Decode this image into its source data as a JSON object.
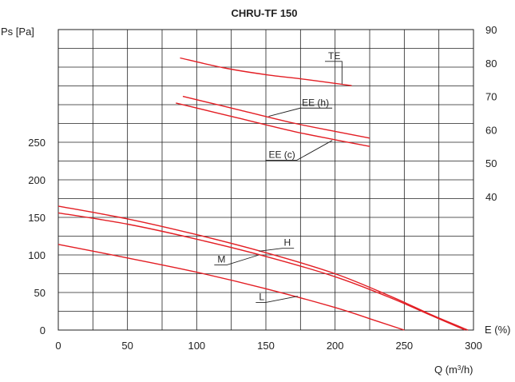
{
  "chart_data": {
    "type": "line",
    "title": "CHRU-TF 150",
    "xlabel": "Q (m³/h)",
    "ylabel_left": "Ps [Pa]",
    "ylabel_right": "E (%)",
    "xlim": [
      0,
      300
    ],
    "ylim_left": [
      0,
      400
    ],
    "ylim_right": [
      0,
      90
    ],
    "grid": true,
    "x_ticks": [
      "0",
      "50",
      "100",
      "150",
      "200",
      "250",
      "300"
    ],
    "y_ticks_left": [
      {
        "value": 0,
        "label": "0"
      },
      {
        "value": 50,
        "label": "50"
      },
      {
        "value": 100,
        "label": "100"
      },
      {
        "value": 150,
        "label": "150"
      },
      {
        "value": 200,
        "label": "200"
      },
      {
        "value": 250,
        "label": "250"
      }
    ],
    "y_ticks_right": [
      {
        "value": 40,
        "label": "40"
      },
      {
        "value": 50,
        "label": "50"
      },
      {
        "value": 60,
        "label": "60"
      },
      {
        "value": 70,
        "label": "70"
      },
      {
        "value": 80,
        "label": "80"
      },
      {
        "value": 90,
        "label": "90"
      }
    ],
    "line_color": "#e31e24",
    "series": [
      {
        "name": "H",
        "axis": "left",
        "x": [
          0,
          50,
          100,
          150,
          200,
          240,
          270,
          296
        ],
        "y": [
          165,
          148,
          127,
          103,
          75,
          45,
          20,
          0
        ]
      },
      {
        "name": "M",
        "axis": "left",
        "x": [
          0,
          50,
          100,
          150,
          200,
          240,
          270,
          294
        ],
        "y": [
          156,
          141,
          121,
          98,
          71,
          43,
          19,
          0
        ]
      },
      {
        "name": "L",
        "axis": "left",
        "x": [
          0,
          50,
          100,
          150,
          200,
          230,
          250
        ],
        "y": [
          114,
          96,
          77,
          55,
          30,
          12,
          0
        ]
      },
      {
        "name": "TE",
        "axis": "right",
        "x": [
          88,
          120,
          150,
          180,
          212
        ],
        "y": [
          81.5,
          78.5,
          76.5,
          75,
          73.2
        ]
      },
      {
        "name": "EE (h)",
        "axis": "right",
        "x": [
          90,
          130,
          170,
          200,
          225
        ],
        "y": [
          70,
          66,
          62,
          59.5,
          57.5
        ]
      },
      {
        "name": "EE (c)",
        "axis": "right",
        "x": [
          85,
          130,
          170,
          200,
          225
        ],
        "y": [
          68,
          63.5,
          59.5,
          57,
          55
        ]
      }
    ],
    "annotations": [
      {
        "label": "TE",
        "series": "TE",
        "text_x": 195,
        "text_y_right": 81.2,
        "point_x": 205,
        "point_y_right": 73.6
      },
      {
        "label": "EE (h)",
        "series": "EE (h)",
        "text_x": 176,
        "text_y_right": 67.2,
        "point_x": 152,
        "point_y_right": 64
      },
      {
        "label": "EE (c)",
        "series": "EE (c)",
        "text_x": 152,
        "text_y_right": 51.6,
        "point_x": 198,
        "point_y_right": 56.8
      },
      {
        "label": "H",
        "series": "H",
        "text_x": 163,
        "text_y_left": 112,
        "point_x": 145,
        "point_y_left": 105
      },
      {
        "label": "M",
        "series": "M",
        "text_x": 115,
        "text_y_left": 90,
        "point_x": 145,
        "point_y_left": 100
      },
      {
        "label": "L",
        "series": "L",
        "text_x": 145,
        "text_y_left": 40,
        "point_x": 173,
        "point_y_left": 45
      }
    ]
  }
}
